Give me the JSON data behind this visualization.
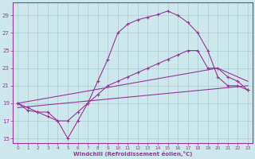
{
  "xlabel": "Windchill (Refroidissement éolien,°C)",
  "background_color": "#cce8ec",
  "grid_color": "#aacccc",
  "line_color": "#993399",
  "xlim": [
    -0.5,
    23.5
  ],
  "ylim": [
    14.5,
    30.5
  ],
  "xticks": [
    0,
    1,
    2,
    3,
    4,
    5,
    6,
    7,
    8,
    9,
    10,
    11,
    12,
    13,
    14,
    15,
    16,
    17,
    18,
    19,
    20,
    21,
    22,
    23
  ],
  "yticks": [
    15,
    17,
    19,
    21,
    23,
    25,
    27,
    29
  ],
  "line1_x": [
    0,
    1,
    2,
    3,
    4,
    5,
    6,
    7,
    8,
    9,
    10,
    11,
    12,
    13,
    14,
    15,
    16,
    17,
    18,
    19,
    20,
    21,
    22,
    23
  ],
  "line1_y": [
    19,
    18.2,
    18,
    17.5,
    17,
    15,
    17,
    19,
    21.5,
    24,
    27,
    28,
    28.5,
    28.8,
    29.1,
    29.5,
    29,
    28.2,
    27,
    25,
    22,
    21,
    21,
    20.5
  ],
  "line2_x": [
    0,
    1,
    2,
    3,
    4,
    5,
    6,
    7,
    8,
    9,
    10,
    11,
    12,
    13,
    14,
    15,
    16,
    17,
    18,
    19,
    20,
    21,
    22,
    23
  ],
  "line2_y": [
    19,
    18.5,
    18,
    18,
    17,
    17,
    18,
    19,
    20,
    21,
    21.5,
    22,
    22.5,
    23,
    23.5,
    24,
    24.5,
    25,
    25,
    23,
    23,
    22,
    21.5,
    20.5
  ],
  "line3_x": [
    0,
    20,
    23
  ],
  "line3_y": [
    19,
    23,
    21.5
  ],
  "line4_x": [
    0,
    23
  ],
  "line4_y": [
    18.5,
    21
  ]
}
